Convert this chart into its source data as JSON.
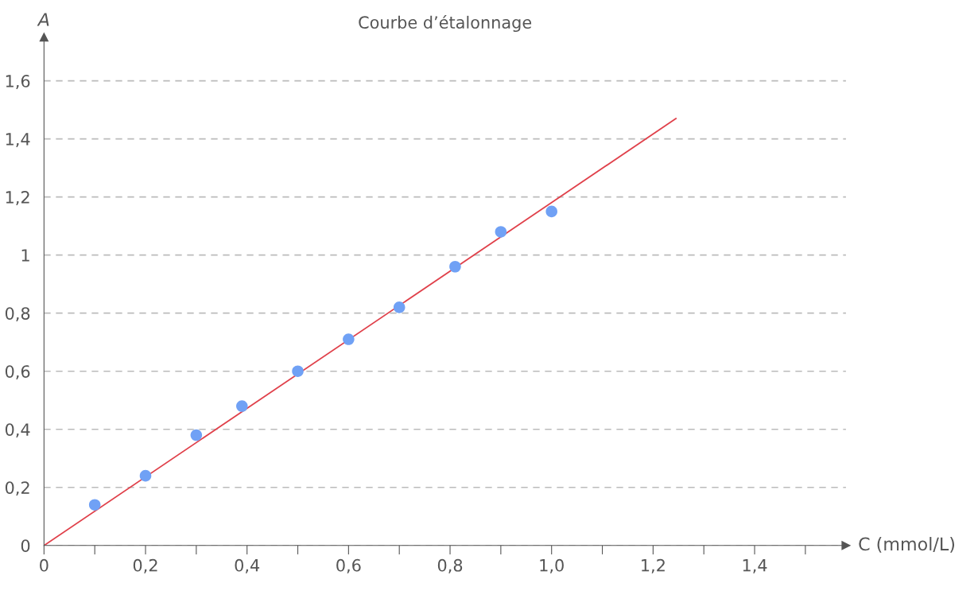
{
  "chart_data": {
    "type": "scatter",
    "title": "Courbe d’étalonnage",
    "xlabel": "C (mmol/L)",
    "ylabel": "A",
    "series": [
      {
        "type": "scatter",
        "color": "#70a1f5",
        "marker": "circle",
        "x": [
          0.1,
          0.2,
          0.3,
          0.39,
          0.5,
          0.6,
          0.7,
          0.81,
          0.9,
          1.0
        ],
        "values": [
          0.14,
          0.24,
          0.38,
          0.48,
          0.6,
          0.71,
          0.82,
          0.96,
          1.08,
          1.15
        ]
      },
      {
        "type": "line",
        "color": "#e0414b",
        "marker": "none",
        "line_style": "solid",
        "x": [
          0,
          1.245
        ],
        "values": [
          0,
          1.47
        ]
      }
    ],
    "xlim": [
      0,
      1.58
    ],
    "ylim": [
      0,
      1.75
    ],
    "xticks": [
      0,
      {
        "value": 0.1,
        "label": null
      },
      {
        "value": 0.2,
        "label": "0,2"
      },
      {
        "value": 0.3,
        "label": null
      },
      {
        "value": 0.4,
        "label": "0,4"
      },
      {
        "value": 0.5,
        "label": null
      },
      {
        "value": 0.6,
        "label": "0,6"
      },
      {
        "value": 0.7,
        "label": null
      },
      {
        "value": 0.8,
        "label": "0,8"
      },
      {
        "value": 0.9,
        "label": null
      },
      {
        "value": 1.0,
        "label": "1,0"
      },
      {
        "value": 1.1,
        "label": null
      },
      {
        "value": 1.2,
        "label": "1,2"
      },
      {
        "value": 1.3,
        "label": null
      },
      {
        "value": 1.4,
        "label": "1,4"
      },
      {
        "value": 1.5,
        "label": null
      }
    ],
    "yticks": [
      0,
      {
        "value": 0.2,
        "label": "0,2"
      },
      {
        "value": 0.4,
        "label": "0,4"
      },
      {
        "value": 0.6,
        "label": "0,6"
      },
      {
        "value": 0.8,
        "label": "0,8"
      },
      1,
      {
        "value": 1.2,
        "label": "1,2"
      },
      {
        "value": 1.4,
        "label": "1,4"
      },
      {
        "value": 1.6,
        "label": "1,6"
      }
    ],
    "grid": "y",
    "legend": false
  }
}
